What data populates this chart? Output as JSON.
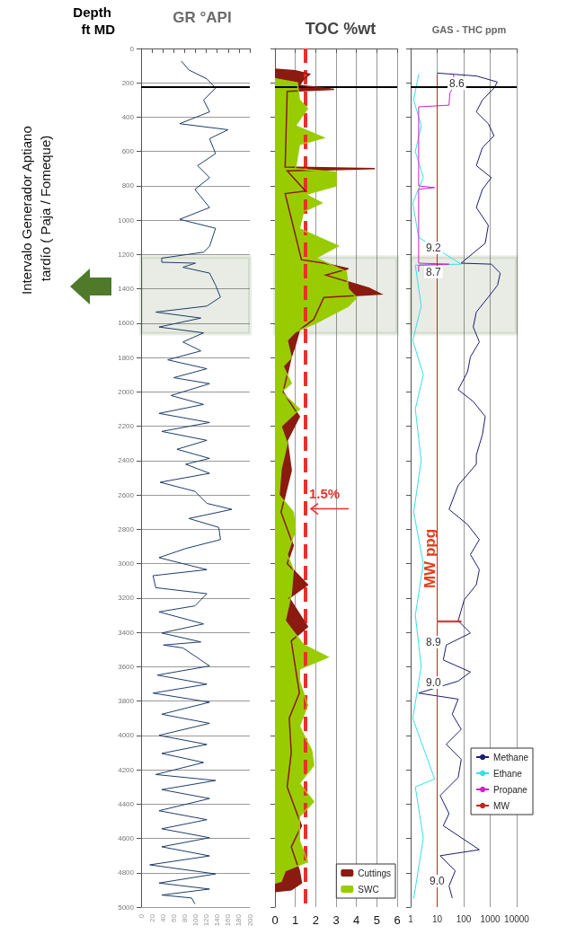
{
  "chart_data": [
    {
      "type": "line",
      "title": "GR °API",
      "ylabel": "Depth ft MD",
      "xlim": [
        0,
        200
      ],
      "xticks": [
        0,
        20,
        40,
        60,
        80,
        100,
        120,
        140,
        160,
        180,
        200
      ],
      "ylim": [
        5000,
        0
      ],
      "yticks": [
        0,
        200,
        400,
        600,
        800,
        1000,
        1200,
        1400,
        1600,
        1800,
        2000,
        2200,
        2400,
        2600,
        2800,
        3000,
        3200,
        3400,
        3600,
        3800,
        4000,
        4200,
        4400,
        4600,
        4800,
        5000
      ],
      "grid": "y",
      "marker": "none",
      "ref_lines": [
        {
          "axis": "y",
          "value": 225,
          "color": "#000000"
        }
      ],
      "bands": [
        {
          "axis": "y",
          "from": 1215,
          "to": 1660,
          "color": "#3f5f22"
        }
      ],
      "annotations": [
        "Intervalo Generador Aptiano tardío ( Paja / Fomeque)"
      ],
      "series": [
        {
          "color": "#1f3d6b",
          "x": [
            74,
            88,
            121,
            137,
            115,
            126,
            71,
            160,
            126,
            137,
            104,
            126,
            99,
            126,
            71,
            137,
            126,
            115,
            38,
            38,
            100,
            77,
            126,
            137,
            146,
            121,
            27,
            110,
            33,
            115,
            77,
            110,
            49,
            121,
            60,
            126,
            55,
            115,
            33,
            126,
            38,
            121,
            66,
            126,
            82,
            126,
            35,
            99,
            121,
            167,
            88,
            143,
            146,
            82,
            33,
            121,
            22,
            27,
            121,
            99,
            33,
            115,
            38,
            110,
            41,
            77,
            126,
            30,
            121,
            22,
            126,
            38,
            126,
            33,
            121,
            38,
            115,
            27,
            137,
            38,
            126,
            33,
            121,
            38,
            126,
            38,
            126,
            16,
            137,
            33,
            126,
            38,
            93,
            99
          ],
          "values": [
            73,
            125,
            177,
            230,
            300,
            369,
            438,
            473,
            525,
            612,
            682,
            752,
            821,
            926,
            995,
            1047,
            1152,
            1186,
            1221,
            1245,
            1250,
            1274,
            1308,
            1378,
            1448,
            1500,
            1535,
            1570,
            1622,
            1656,
            1709,
            1761,
            1813,
            1865,
            1917,
            1952,
            2021,
            2073,
            2125,
            2178,
            2230,
            2282,
            2334,
            2387,
            2421,
            2474,
            2526,
            2579,
            2649,
            2684,
            2737,
            2789,
            2860,
            2912,
            2965,
            3035,
            3070,
            3140,
            3175,
            3246,
            3281,
            3351,
            3404,
            3456,
            3474,
            3491,
            3596,
            3649,
            3702,
            3754,
            3807,
            3877,
            3930,
            4000,
            4053,
            4105,
            4158,
            4228,
            4263,
            4316,
            4368,
            4439,
            4491,
            4544,
            4596,
            4649,
            4702,
            4754,
            4807,
            4860,
            4895,
            4930,
            4947,
            4982
          ]
        }
      ]
    },
    {
      "type": "area",
      "title": "TOC %wt",
      "xlim": [
        0,
        6
      ],
      "xticks": [
        0,
        1,
        2,
        3,
        4,
        5,
        6
      ],
      "ylim": [
        5000,
        0
      ],
      "yticks": [
        0,
        200,
        400,
        600,
        800,
        1000,
        1200,
        1400,
        1600,
        1800,
        2000,
        2200,
        2400,
        2600,
        2800,
        3000,
        3200,
        3400,
        3600,
        3800,
        4000,
        4200,
        4400,
        4600,
        4800,
        5000
      ],
      "tick_labels": "x",
      "grid": "x",
      "legend": "bottom right",
      "ref_lines": [
        {
          "axis": "x",
          "value": 1.5,
          "label": "1.5%",
          "color": "#e8312a",
          "line_style": "dashed"
        },
        {
          "axis": "y",
          "value": 225,
          "color": "#000000"
        }
      ],
      "bands": [
        {
          "axis": "y",
          "from": 1215,
          "to": 1660,
          "color": "#3f5f22"
        }
      ],
      "series": [
        {
          "name": "Cuttings",
          "color": "#8b1a10",
          "x": [
            0,
            1.0,
            1.7,
            1.4,
            1.2,
            2.9,
            0.6,
            0.5,
            4.9,
            0.6,
            1.5,
            0.5,
            1.3,
            2.4,
            3.6,
            2.5,
            4.6,
            5.2,
            2.4,
            1.9,
            1.2,
            1.0,
            0.8,
            0.6,
            0.4,
            1.2,
            0.6,
            0.8,
            0.5,
            0.3,
            0.9,
            0.6,
            1.6,
            0.7,
            1.6,
            0.8,
            1.2,
            0.7,
            0.8,
            0.6,
            1.3,
            0.8,
            1.2,
            1.3,
            0.8,
            0
          ],
          "values": [
            120,
            130,
            150,
            180,
            215,
            238,
            250,
            690,
            700,
            712,
            830,
            845,
            1230,
            1250,
            1283,
            1320,
            1395,
            1430,
            1450,
            1578,
            1640,
            1726,
            1796,
            1900,
            2000,
            2143,
            2283,
            2456,
            2600,
            2700,
            2895,
            3000,
            3123,
            3200,
            3368,
            3450,
            3754,
            3900,
            4100,
            4300,
            4526,
            4650,
            4789,
            4859,
            4900,
            4910
          ]
        },
        {
          "name": "SWC",
          "color": "#99cc00",
          "x": [
            0,
            0.2,
            1.1,
            1.2,
            1.6,
            1.0,
            2.4,
            1.2,
            1.0,
            3.0,
            3.0,
            1.5,
            2.3,
            1.4,
            1.2,
            3.1,
            2.0,
            3.5,
            3.6,
            4.0,
            3.6,
            2.0,
            1.0,
            0.6,
            0.8,
            0.4,
            0.8,
            0.3,
            1.2,
            0.3,
            0.6,
            0.3,
            0.2,
            0.9,
            1.0,
            0.6,
            0.9,
            0.8,
            0.5,
            1.4,
            2.6,
            1.2,
            1.2,
            1.6,
            1.2,
            1.8,
            1.9,
            1.2,
            1.9,
            1.2,
            1.2,
            1.6,
            0.5,
            0.3,
            0
          ],
          "values": [
            175,
            180,
            200,
            300,
            350,
            450,
            520,
            560,
            700,
            720,
            800,
            850,
            900,
            950,
            1050,
            1150,
            1220,
            1300,
            1400,
            1450,
            1500,
            1600,
            1650,
            1700,
            1800,
            1850,
            1950,
            2000,
            2100,
            2200,
            2300,
            2450,
            2600,
            2700,
            2807,
            2947,
            3035,
            3175,
            3333,
            3473,
            3544,
            3614,
            3684,
            3824,
            3947,
            4087,
            4175,
            4280,
            4386,
            4473,
            4614,
            4736,
            4789,
            4850,
            4860
          ]
        }
      ]
    },
    {
      "type": "line",
      "title": "GAS - THC ppm",
      "log": "x",
      "xlim": [
        1,
        10000
      ],
      "xticks": [
        1,
        10,
        100,
        1000,
        10000
      ],
      "ylim": [
        5000,
        0
      ],
      "yticks": [
        0,
        200,
        400,
        600,
        800,
        1000,
        1200,
        1400,
        1600,
        1800,
        2000,
        2200,
        2400,
        2600,
        2800,
        3000,
        3200,
        3400,
        3600,
        3800,
        4000,
        4200,
        4400,
        4600,
        4800,
        5000
      ],
      "tick_labels": "x",
      "grid": "x",
      "legend": "bottom right",
      "marker": "none",
      "ref_lines": [
        {
          "axis": "y",
          "value": 225,
          "color": "#000000"
        }
      ],
      "bands": [
        {
          "axis": "y",
          "from": 1215,
          "to": 1660,
          "color": "#3f5f22"
        }
      ],
      "annotations": [
        "8.6",
        "9.2",
        "8.7",
        "8.9",
        "9.0",
        "9.0",
        "MW ppg"
      ],
      "series": [
        {
          "name": "Methane",
          "color": "#1a1f6e",
          "x": [
            10,
            300,
            1860,
            1400,
            510,
            300,
            850,
            1400,
            510,
            300,
            1100,
            510,
            300,
            850,
            650,
            80,
            1100,
            2400,
            1900,
            850,
            300,
            230,
            390,
            180,
            140,
            62,
            230,
            650,
            510,
            300,
            300,
            62,
            28,
            140,
            390,
            180,
            390,
            300,
            105,
            62,
            180,
            22,
            17,
            180,
            62,
            2,
            62,
            37,
            81,
            22,
            81,
            62,
            13,
            28,
            17,
            390,
            13,
            48,
            28,
            37
          ],
          "values": [
            143,
            160,
            195,
            230,
            300,
            369,
            438,
            508,
            578,
            682,
            752,
            821,
            926,
            1030,
            1134,
            1250,
            1256,
            1308,
            1378,
            1448,
            1535,
            1622,
            1709,
            1796,
            1883,
            1987,
            2056,
            2143,
            2248,
            2369,
            2421,
            2544,
            2684,
            2772,
            2860,
            2947,
            3035,
            3123,
            3210,
            3333,
            3404,
            3474,
            3561,
            3631,
            3684,
            3754,
            3789,
            3877,
            3965,
            4052,
            4140,
            4245,
            4350,
            4456,
            4526,
            4666,
            4701,
            4789,
            4877,
            4947
          ]
        },
        {
          "name": "Ethane",
          "color": "#33e0e8",
          "x": [
            2,
            1.3,
            2.5,
            1.5,
            3,
            1.2,
            2,
            80,
            1.5,
            2.5,
            1.2,
            3,
            1.5,
            2.5,
            1.3,
            3,
            1.5,
            2.5,
            1.2,
            8,
            1.5,
            3,
            1.3
          ],
          "values": [
            150,
            300,
            450,
            600,
            750,
            900,
            1100,
            1256,
            1262,
            1500,
            1700,
            1900,
            2100,
            2400,
            2700,
            3000,
            3300,
            3600,
            3900,
            4254,
            4300,
            4600,
            4950
          ]
        },
        {
          "name": "Propane",
          "color": "#d020c8",
          "x": [
            40,
            50,
            30,
            28,
            2,
            2,
            8,
            2,
            2,
            28,
            2,
            2
          ],
          "values": [
            150,
            200,
            260,
            330,
            340,
            800,
            810,
            820,
            1250,
            1256,
            1262,
            1300
          ]
        },
        {
          "name": "MW",
          "color": "#cc2020",
          "x": [
            10,
            10,
            80,
            80,
            10,
            10
          ],
          "values": [
            150,
            3333,
            3333,
            3340,
            3340,
            5000
          ]
        }
      ]
    }
  ]
}
